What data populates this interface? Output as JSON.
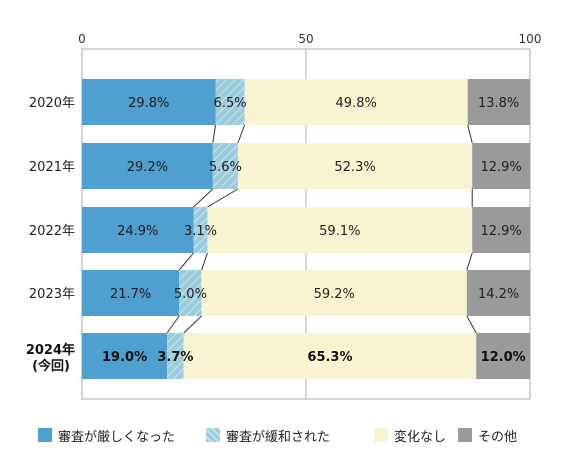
{
  "chart_data": {
    "type": "bar",
    "orientation": "horizontal",
    "stacked": true,
    "categories": [
      {
        "label": "2020年",
        "sub": "",
        "highlight": false
      },
      {
        "label": "2021年",
        "sub": "",
        "highlight": false
      },
      {
        "label": "2022年",
        "sub": "",
        "highlight": false
      },
      {
        "label": "2023年",
        "sub": "",
        "highlight": false
      },
      {
        "label": "2024年",
        "sub": "(今回)",
        "highlight": true
      }
    ],
    "series": [
      {
        "name": "審査が厳しくなった",
        "color": "#4f9fcf",
        "pattern": "solid",
        "values": [
          29.8,
          29.2,
          24.9,
          21.7,
          19.0
        ],
        "labels": [
          "29.8%",
          "29.2%",
          "24.9%",
          "21.7%",
          "19.0%"
        ]
      },
      {
        "name": "審査が緩和された",
        "color": "#9ccbdc",
        "pattern": "hatch",
        "values": [
          6.5,
          5.6,
          3.1,
          5.0,
          3.7
        ],
        "labels": [
          "6.5%",
          "5.6%",
          "3.1%",
          "5.0%",
          "3.7%"
        ]
      },
      {
        "name": "変化なし",
        "color": "#f8f4d2",
        "pattern": "solid",
        "values": [
          49.8,
          52.3,
          59.1,
          59.2,
          65.3
        ],
        "labels": [
          "49.8%",
          "52.3%",
          "59.1%",
          "59.2%",
          "65.3%"
        ]
      },
      {
        "name": "その他",
        "color": "#9a9a9a",
        "pattern": "solid",
        "values": [
          13.8,
          12.9,
          12.9,
          14.2,
          12.0
        ],
        "labels": [
          "13.8%",
          "12.9%",
          "12.9%",
          "14.2%",
          "12.0%"
        ]
      }
    ],
    "xlim": [
      0,
      100
    ],
    "xticks": [
      0,
      50,
      100
    ],
    "xtick_labels": [
      "0",
      "50",
      "100"
    ],
    "grid": "vertical at 50",
    "connector_lines": true,
    "legend_position": "bottom"
  }
}
